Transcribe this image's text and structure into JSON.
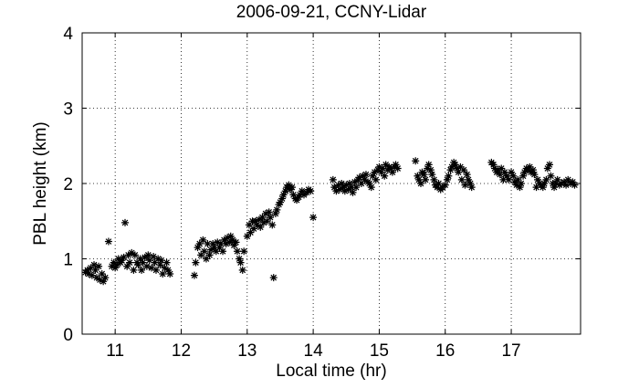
{
  "chart_data": {
    "type": "scatter",
    "title": "2006-09-21, CCNY-Lidar",
    "x_label": "Local time (hr)",
    "y_label": "PBL height (km)",
    "marker": "*",
    "color": "#000000",
    "grid": true,
    "xlim": [
      10.5,
      18.05
    ],
    "ylim": [
      0,
      4
    ],
    "xticks": [
      11,
      12,
      13,
      14,
      15,
      16,
      17
    ],
    "yticks": [
      0,
      1,
      2,
      3,
      4
    ],
    "x": [
      10.55,
      10.58,
      10.6,
      10.63,
      10.65,
      10.68,
      10.7,
      10.72,
      10.75,
      10.77,
      10.8,
      10.82,
      10.85,
      10.9,
      10.95,
      10.98,
      11.0,
      11.03,
      11.05,
      11.08,
      11.1,
      11.13,
      11.15,
      11.18,
      11.2,
      11.22,
      11.25,
      11.28,
      11.3,
      11.33,
      11.35,
      11.38,
      11.4,
      11.42,
      11.45,
      11.48,
      11.5,
      11.52,
      11.55,
      11.58,
      11.6,
      11.62,
      11.65,
      11.68,
      11.7,
      11.72,
      11.75,
      11.78,
      11.8,
      11.83,
      12.2,
      12.22,
      12.25,
      12.28,
      12.3,
      12.33,
      12.35,
      12.38,
      12.4,
      12.43,
      12.45,
      12.48,
      12.5,
      12.53,
      12.55,
      12.58,
      12.6,
      12.63,
      12.65,
      12.68,
      12.7,
      12.73,
      12.75,
      12.78,
      12.8,
      12.83,
      12.85,
      12.88,
      12.9,
      12.93,
      12.95,
      13.0,
      13.03,
      13.05,
      13.08,
      13.1,
      13.13,
      13.15,
      13.18,
      13.2,
      13.23,
      13.25,
      13.28,
      13.3,
      13.33,
      13.35,
      13.38,
      13.4,
      13.43,
      13.45,
      13.48,
      13.5,
      13.53,
      13.55,
      13.58,
      13.6,
      13.63,
      13.65,
      13.68,
      13.7,
      13.73,
      13.75,
      13.78,
      13.8,
      13.83,
      13.86,
      13.9,
      13.93,
      13.96,
      14.0,
      14.3,
      14.32,
      14.35,
      14.38,
      14.4,
      14.43,
      14.45,
      14.48,
      14.5,
      14.53,
      14.55,
      14.58,
      14.6,
      14.63,
      14.65,
      14.68,
      14.7,
      14.73,
      14.75,
      14.78,
      14.8,
      14.83,
      14.85,
      14.88,
      14.9,
      14.93,
      14.95,
      14.98,
      15.0,
      15.03,
      15.05,
      15.08,
      15.1,
      15.13,
      15.15,
      15.18,
      15.2,
      15.23,
      15.25,
      15.28,
      15.55,
      15.58,
      15.6,
      15.63,
      15.65,
      15.68,
      15.7,
      15.73,
      15.75,
      15.78,
      15.8,
      15.83,
      15.85,
      15.88,
      15.9,
      15.93,
      15.96,
      16.0,
      16.03,
      16.05,
      16.08,
      16.1,
      16.13,
      16.15,
      16.18,
      16.2,
      16.23,
      16.25,
      16.28,
      16.3,
      16.33,
      16.35,
      16.38,
      16.4,
      16.7,
      16.73,
      16.75,
      16.78,
      16.8,
      16.83,
      16.85,
      16.88,
      16.9,
      16.93,
      16.96,
      17.0,
      17.03,
      17.05,
      17.08,
      17.1,
      17.13,
      17.15,
      17.18,
      17.2,
      17.23,
      17.25,
      17.28,
      17.3,
      17.33,
      17.35,
      17.38,
      17.4,
      17.43,
      17.45,
      17.48,
      17.5,
      17.53,
      17.55,
      17.58,
      17.6,
      17.63,
      17.65,
      17.68,
      17.7,
      17.73,
      17.76,
      17.8,
      17.83,
      17.86,
      17.9,
      17.93,
      17.96
    ],
    "values": [
      0.82,
      0.85,
      0.8,
      0.88,
      0.78,
      0.92,
      0.85,
      0.75,
      0.9,
      0.72,
      0.8,
      0.7,
      0.75,
      1.23,
      0.9,
      0.95,
      0.88,
      0.92,
      1.0,
      0.95,
      0.98,
      1.02,
      1.48,
      0.9,
      1.05,
      0.95,
      1.08,
      0.85,
      1.05,
      0.95,
      0.92,
      1.0,
      0.85,
      0.95,
      1.02,
      0.9,
      1.05,
      0.98,
      0.88,
      1.03,
      0.95,
      0.85,
      1.0,
      0.92,
      0.98,
      0.8,
      0.88,
      0.95,
      0.85,
      0.8,
      0.78,
      0.95,
      1.15,
      1.2,
      1.05,
      1.25,
      1.1,
      1.0,
      1.2,
      1.05,
      1.12,
      1.2,
      1.15,
      1.1,
      1.22,
      1.15,
      1.2,
      1.1,
      1.25,
      1.2,
      1.28,
      1.22,
      1.3,
      1.25,
      1.18,
      1.22,
      1.1,
      1.0,
      0.95,
      0.85,
      1.1,
      1.3,
      1.45,
      1.35,
      1.5,
      1.4,
      1.5,
      1.45,
      1.52,
      1.42,
      1.55,
      1.48,
      1.6,
      1.5,
      1.62,
      1.55,
      1.45,
      0.75,
      1.6,
      1.65,
      1.72,
      1.75,
      1.8,
      1.85,
      1.9,
      1.95,
      1.98,
      1.92,
      1.95,
      1.85,
      1.8,
      1.78,
      1.82,
      1.85,
      1.9,
      1.85,
      1.88,
      1.92,
      1.9,
      1.55,
      2.05,
      1.95,
      1.9,
      1.98,
      1.92,
      2.0,
      1.95,
      1.9,
      1.98,
      1.92,
      2.0,
      1.95,
      1.88,
      2.02,
      1.95,
      2.05,
      2.08,
      2.0,
      2.1,
      2.05,
      2.12,
      2.02,
      2.0,
      1.95,
      2.1,
      2.15,
      2.05,
      2.18,
      2.22,
      2.15,
      2.2,
      2.1,
      2.25,
      2.18,
      2.22,
      2.2,
      2.15,
      2.22,
      2.25,
      2.2,
      2.3,
      2.1,
      2.05,
      2.0,
      2.15,
      2.12,
      2.05,
      2.2,
      2.25,
      2.18,
      2.12,
      2.05,
      1.98,
      1.95,
      2.0,
      1.92,
      1.95,
      1.98,
      2.05,
      2.1,
      2.18,
      2.22,
      2.28,
      2.25,
      2.2,
      2.15,
      2.22,
      2.05,
      2.18,
      1.98,
      2.12,
      2.05,
      2.0,
      1.95,
      2.28,
      2.25,
      2.2,
      2.15,
      2.18,
      2.12,
      2.2,
      2.05,
      2.15,
      2.1,
      2.05,
      2.15,
      2.1,
      2.02,
      1.98,
      2.05,
      1.95,
      2.0,
      2.1,
      2.15,
      2.2,
      2.18,
      2.22,
      2.15,
      2.18,
      2.12,
      1.95,
      2.05,
      2.0,
      1.98,
      1.95,
      2.0,
      2.05,
      2.2,
      2.25,
      2.1,
      2.0,
      1.95,
      2.0,
      2.05,
      1.98,
      2.0,
      2.02,
      1.98,
      2.05,
      2.0,
      2.02,
      1.98
    ]
  }
}
